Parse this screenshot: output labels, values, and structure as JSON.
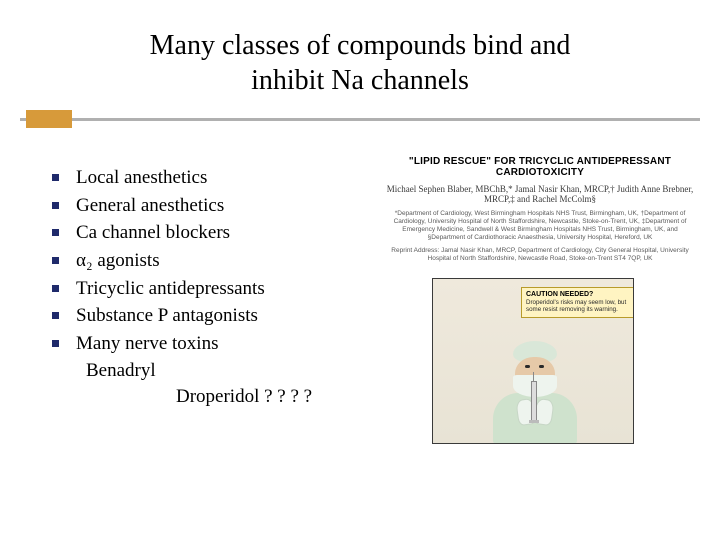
{
  "colors": {
    "bullet": "#1f2a6b",
    "accent_block": "#d79a3a",
    "rule": "#b0b0b0",
    "caution_bg": "#fff4c2",
    "caution_border": "#b89b2a"
  },
  "title": {
    "line1": "Many classes of compounds bind and",
    "line2": "inhibit Na channels"
  },
  "bullets": [
    "Local anesthetics",
    "General anesthetics",
    "Ca channel blockers",
    "α₂ agonists",
    "Tricyclic antidepressants",
    "Substance P antagonists",
    "Many nerve toxins"
  ],
  "sublines": {
    "benadryl": "Benadryl",
    "droperidol": "Droperidol ? ? ? ?"
  },
  "paper": {
    "title": "\"LIPID RESCUE\" FOR TRICYCLIC ANTIDEPRESSANT CARDIOTOXICITY",
    "authors": "Michael Sephen Blaber, MBChB,* Jamal Nasir Khan, MRCP,† Judith Anne Brebner, MRCP,‡ and Rachel McColm§",
    "affiliations": "*Department of Cardiology, West Birmingham Hospitals NHS Trust, Birmingham, UK, †Department of Cardiology, University Hospital of North Staffordshire, Newcastle, Stoke-on-Trent, UK, ‡Department of Emergency Medicine, Sandwell & West Birmingham Hospitals NHS Trust, Birmingham, UK, and §Department of Cardiothoracic Anaesthesia, University Hospital, Hereford, UK",
    "reprint": "Reprint Address: Jamal Nasir Khan, MRCP, Department of Cardiology, City General Hospital, University Hospital of North Staffordshire, Newcastle Road, Stoke-on-Trent ST4 7QP, UK"
  },
  "caution": {
    "title": "CAUTION NEEDED?",
    "text": "Droperidol's risks may seem low, but some resist removing its warning."
  }
}
